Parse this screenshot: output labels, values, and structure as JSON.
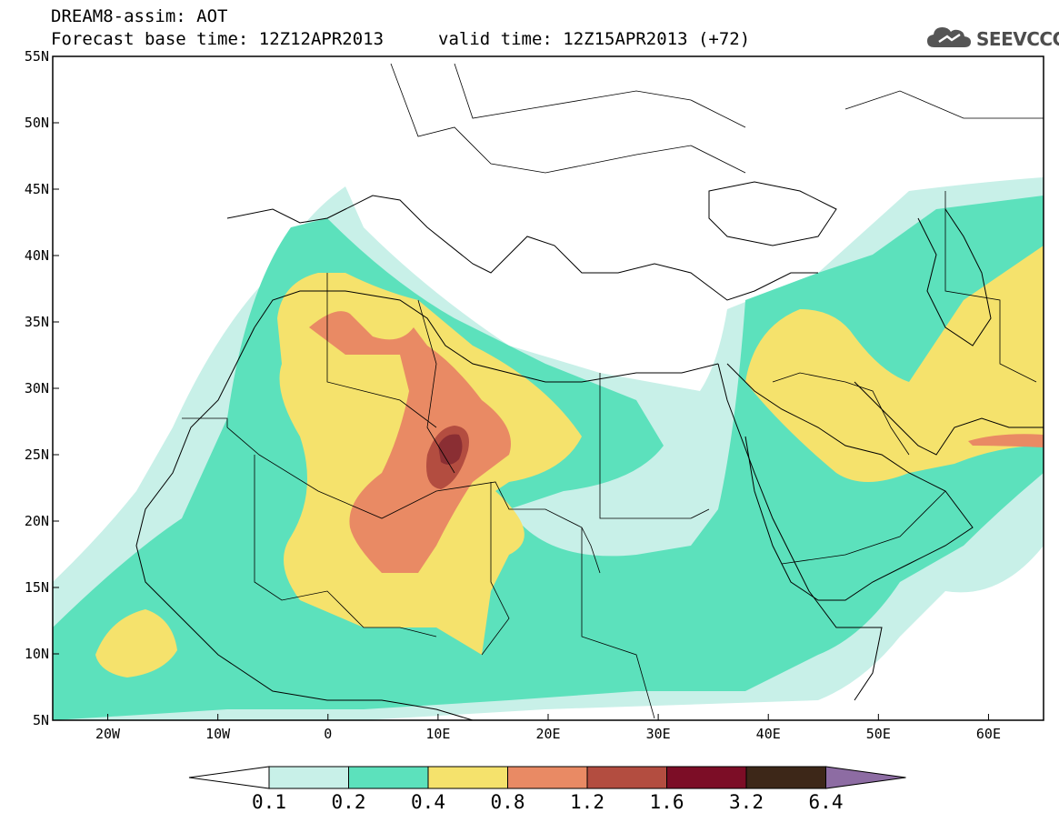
{
  "header": {
    "line1": "DREAM8-assim: AOT",
    "base_time": "Forecast base time: 12Z12APR2013",
    "valid_time": "valid time: 12Z15APR2013 (+72)"
  },
  "logo": {
    "text": "SEEVCCC",
    "icon": "cloud-icon"
  },
  "map": {
    "y_ticks": [
      "55N",
      "50N",
      "45N",
      "40N",
      "35N",
      "30N",
      "25N",
      "20N",
      "15N",
      "10N",
      "5N"
    ],
    "x_ticks": [
      "20W",
      "10W",
      "0",
      "10E",
      "20E",
      "30E",
      "40E",
      "50E",
      "60E"
    ],
    "lat_range": [
      5,
      55
    ],
    "lon_range": [
      -25,
      65
    ]
  },
  "colorbar": {
    "levels": [
      "0.1",
      "0.2",
      "0.4",
      "0.8",
      "1.2",
      "1.6",
      "3.2",
      "6.4"
    ],
    "colors": [
      "#ffffff",
      "#c8f0e8",
      "#5ce1bc",
      "#f5e26c",
      "#e98a64",
      "#b34d40",
      "#7c0d26",
      "#3d2718",
      "#8d6ca3"
    ]
  }
}
